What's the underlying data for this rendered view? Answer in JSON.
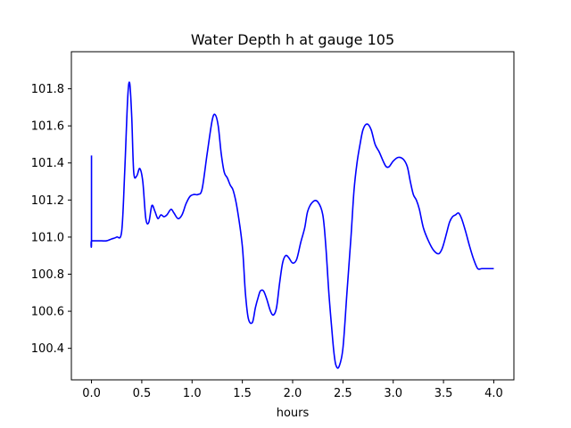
{
  "chart_data": {
    "type": "line",
    "title": "Water Depth h at gauge 105",
    "xlabel": "hours",
    "ylabel": "",
    "xlim": [
      -0.2,
      4.2
    ],
    "ylim": [
      100.23,
      102.0
    ],
    "xticks": [
      0.0,
      0.5,
      1.0,
      1.5,
      2.0,
      2.5,
      3.0,
      3.5,
      4.0
    ],
    "xtick_labels": [
      "0.0",
      "0.5",
      "1.0",
      "1.5",
      "2.0",
      "2.5",
      "3.0",
      "3.5",
      "4.0"
    ],
    "yticks": [
      100.4,
      100.6,
      100.8,
      101.0,
      101.2,
      101.4,
      101.6,
      101.8
    ],
    "ytick_labels": [
      "100.4",
      "100.6",
      "100.8",
      "101.0",
      "101.2",
      "101.4",
      "101.6",
      "101.8"
    ],
    "grid": false,
    "line_color": "#0000ff",
    "series": [
      {
        "x": [
          0.0,
          0.0,
          0.0,
          0.05,
          0.1,
          0.15,
          0.2,
          0.25,
          0.3,
          0.33,
          0.36,
          0.38,
          0.4,
          0.42,
          0.45,
          0.48,
          0.51,
          0.54,
          0.57,
          0.6,
          0.63,
          0.66,
          0.69,
          0.72,
          0.75,
          0.79,
          0.82,
          0.86,
          0.9,
          0.94,
          0.98,
          1.02,
          1.06,
          1.1,
          1.15,
          1.2,
          1.23,
          1.26,
          1.29,
          1.32,
          1.35,
          1.38,
          1.41,
          1.45,
          1.5,
          1.53,
          1.56,
          1.6,
          1.63,
          1.66,
          1.68,
          1.71,
          1.74,
          1.78,
          1.81,
          1.84,
          1.87,
          1.9,
          1.93,
          1.96,
          2.0,
          2.04,
          2.08,
          2.12,
          2.15,
          2.2,
          2.25,
          2.3,
          2.33,
          2.36,
          2.39,
          2.41,
          2.43,
          2.46,
          2.5,
          2.54,
          2.58,
          2.61,
          2.64,
          2.67,
          2.7,
          2.74,
          2.78,
          2.82,
          2.86,
          2.9,
          2.93,
          2.96,
          3.0,
          3.05,
          3.1,
          3.14,
          3.17,
          3.2,
          3.23,
          3.26,
          3.3,
          3.35,
          3.4,
          3.45,
          3.48,
          3.5,
          3.53,
          3.56,
          3.59,
          3.62,
          3.65,
          3.68,
          3.72,
          3.76,
          3.8,
          3.84,
          3.88,
          3.92,
          3.96,
          4.0
        ],
        "y": [
          101.44,
          100.98,
          100.98,
          100.98,
          100.98,
          100.98,
          100.99,
          101.0,
          101.03,
          101.35,
          101.75,
          101.83,
          101.65,
          101.35,
          101.33,
          101.37,
          101.3,
          101.1,
          101.08,
          101.17,
          101.14,
          101.1,
          101.12,
          101.11,
          101.12,
          101.15,
          101.13,
          101.1,
          101.12,
          101.18,
          101.22,
          101.23,
          101.23,
          101.26,
          101.45,
          101.63,
          101.66,
          101.6,
          101.45,
          101.35,
          101.32,
          101.28,
          101.25,
          101.15,
          100.95,
          100.7,
          100.56,
          100.54,
          100.62,
          100.68,
          100.71,
          100.71,
          100.67,
          100.6,
          100.58,
          100.62,
          100.75,
          100.86,
          100.9,
          100.89,
          100.86,
          100.88,
          100.97,
          101.05,
          101.14,
          101.19,
          101.19,
          101.12,
          100.95,
          100.7,
          100.5,
          100.38,
          100.31,
          100.3,
          100.4,
          100.7,
          101.0,
          101.25,
          101.4,
          101.5,
          101.58,
          101.61,
          101.58,
          101.5,
          101.46,
          101.41,
          101.38,
          101.38,
          101.41,
          101.43,
          101.42,
          101.38,
          101.3,
          101.23,
          101.2,
          101.15,
          101.05,
          100.98,
          100.93,
          100.91,
          100.93,
          100.96,
          101.02,
          101.08,
          101.11,
          101.12,
          101.13,
          101.1,
          101.03,
          100.95,
          100.88,
          100.83,
          100.83,
          100.83,
          100.83,
          100.83
        ]
      }
    ]
  }
}
